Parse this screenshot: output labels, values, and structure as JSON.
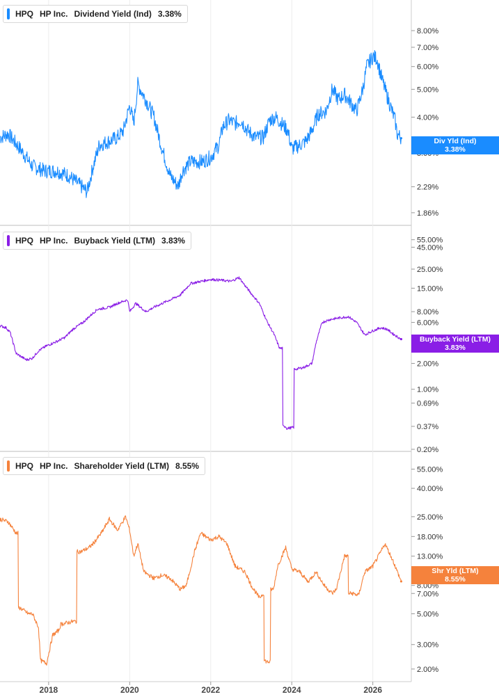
{
  "chart_data": [
    {
      "type": "line",
      "ticker": "HPQ",
      "company": "HP Inc.",
      "metric": "Dividend Yield (Ind)",
      "last_value": "3.38%",
      "tag_label": "Div Yld (Ind)",
      "color": "#1a8cff",
      "scale": "log",
      "ylim": [
        1.7,
        10.0
      ],
      "yticks": [
        "8.00%",
        "7.00%",
        "6.00%",
        "5.00%",
        "4.00%",
        "3.00%",
        "2.29%",
        "1.86%"
      ],
      "ytick_values": [
        8.0,
        7.0,
        6.0,
        5.0,
        4.0,
        3.0,
        2.29,
        1.86
      ],
      "x": [
        2016.8,
        2017.0,
        2017.3,
        2017.6,
        2017.9,
        2018.2,
        2018.5,
        2018.8,
        2018.95,
        2019.1,
        2019.25,
        2019.5,
        2019.7,
        2019.85,
        2020.0,
        2020.1,
        2020.2,
        2020.4,
        2020.6,
        2020.8,
        2021.0,
        2021.2,
        2021.3,
        2021.5,
        2021.8,
        2022.0,
        2022.2,
        2022.3,
        2022.45,
        2022.6,
        2022.75,
        2022.9,
        2023.1,
        2023.3,
        2023.45,
        2023.6,
        2023.75,
        2023.9,
        2024.0,
        2024.2,
        2024.35,
        2024.5,
        2024.65,
        2024.85,
        2025.0,
        2025.15,
        2025.3,
        2025.45,
        2025.6,
        2025.75,
        2025.85,
        2026.0,
        2026.1,
        2026.2,
        2026.3,
        2026.45,
        2026.55,
        2026.6,
        2026.7
      ],
      "y": [
        3.4,
        3.5,
        3.1,
        2.7,
        2.6,
        2.6,
        2.5,
        2.3,
        2.2,
        2.7,
        3.2,
        3.3,
        3.4,
        3.6,
        4.4,
        3.8,
        5.2,
        4.6,
        4.0,
        3.1,
        2.5,
        2.3,
        2.6,
        2.8,
        2.8,
        2.9,
        3.2,
        3.7,
        3.9,
        3.8,
        3.9,
        3.6,
        3.4,
        3.4,
        3.9,
        4.0,
        3.8,
        3.6,
        3.1,
        3.2,
        3.3,
        3.6,
        4.1,
        4.2,
        5.0,
        4.6,
        4.8,
        4.5,
        4.2,
        5.0,
        6.0,
        6.5,
        6.4,
        5.6,
        5.0,
        4.3,
        3.9,
        3.5,
        3.38
      ]
    },
    {
      "type": "line",
      "ticker": "HPQ",
      "company": "HP Inc.",
      "metric": "Buyback Yield (LTM)",
      "last_value": "3.83%",
      "tag_label": "Buyback Yield (LTM)",
      "color": "#8a1ee6",
      "scale": "log",
      "ylim": [
        0.2,
        60.0
      ],
      "yticks": [
        "55.00%",
        "45.00%",
        "25.00%",
        "15.00%",
        "8.00%",
        "6.00%",
        "3.00%",
        "2.00%",
        "1.00%",
        "0.69%",
        "0.37%",
        "0.20%"
      ],
      "ytick_values": [
        55,
        45,
        25,
        15,
        8,
        6,
        3,
        2,
        1,
        0.69,
        0.37,
        0.2
      ],
      "x": [
        2016.8,
        2016.95,
        2017.05,
        2017.2,
        2017.45,
        2017.6,
        2017.75,
        2017.95,
        2018.2,
        2018.4,
        2018.6,
        2018.85,
        2019.0,
        2019.2,
        2019.5,
        2019.7,
        2019.95,
        2020.0,
        2020.15,
        2020.4,
        2020.6,
        2020.9,
        2021.0,
        2021.25,
        2021.5,
        2021.75,
        2022.0,
        2022.3,
        2022.5,
        2022.7,
        2022.85,
        2023.0,
        2023.2,
        2023.4,
        2023.55,
        2023.7,
        2023.85,
        2023.87,
        2024.05,
        2024.07,
        2024.3,
        2024.5,
        2024.6,
        2024.75,
        2024.95,
        2025.2,
        2025.4,
        2025.6,
        2025.8,
        2026.0,
        2026.2,
        2026.35,
        2026.5,
        2026.7
      ],
      "y": [
        5.5,
        5.2,
        4.6,
        2.6,
        2.2,
        2.3,
        2.8,
        3.2,
        3.6,
        4.0,
        5.0,
        6.0,
        7.0,
        8.5,
        9.0,
        10.0,
        11.0,
        8.0,
        10.0,
        8.0,
        9.0,
        10.5,
        11.0,
        12.5,
        17.0,
        18.0,
        19.0,
        18.5,
        18.0,
        20.0,
        16.0,
        13.0,
        10.0,
        6.0,
        4.5,
        3.0,
        0.37,
        0.35,
        0.36,
        1.7,
        1.8,
        2.0,
        3.5,
        6.0,
        6.5,
        6.8,
        7.0,
        6.0,
        4.3,
        4.8,
        5.2,
        5.0,
        4.4,
        3.83
      ]
    },
    {
      "type": "line",
      "ticker": "HPQ",
      "company": "HP Inc.",
      "metric": "Shareholder Yield (LTM)",
      "last_value": "8.55%",
      "tag_label": "Shr Yld (LTM)",
      "color": "#f5823c",
      "scale": "log",
      "ylim": [
        1.7,
        65.0
      ],
      "yticks": [
        "55.00%",
        "40.00%",
        "25.00%",
        "18.00%",
        "13.00%",
        "8.00%",
        "7.00%",
        "5.00%",
        "3.00%",
        "2.00%"
      ],
      "ytick_values": [
        55,
        40,
        25,
        18,
        13,
        8,
        7,
        5,
        3,
        2
      ],
      "x": [
        2016.8,
        2017.0,
        2017.2,
        2017.3,
        2017.5,
        2017.6,
        2017.75,
        2017.8,
        2017.95,
        2018.1,
        2018.25,
        2018.3,
        2018.6,
        2018.8,
        2019.0,
        2019.1,
        2019.3,
        2019.5,
        2019.7,
        2019.9,
        2020.0,
        2020.1,
        2020.2,
        2020.35,
        2020.6,
        2020.8,
        2021.0,
        2021.25,
        2021.4,
        2021.6,
        2021.75,
        2022.0,
        2022.2,
        2022.4,
        2022.6,
        2022.85,
        2023.0,
        2023.2,
        2023.3,
        2023.33,
        2023.4,
        2023.55,
        2023.65,
        2023.85,
        2024.0,
        2024.2,
        2024.4,
        2024.6,
        2024.8,
        2025.0,
        2025.1,
        2025.3,
        2025.5,
        2025.65,
        2025.8,
        2026.0,
        2026.2,
        2026.3,
        2026.5,
        2026.7
      ],
      "y": [
        24.0,
        23.0,
        19.0,
        5.5,
        5.0,
        5.0,
        4.0,
        2.3,
        2.2,
        3.5,
        3.8,
        4.2,
        4.4,
        14.0,
        15.0,
        16.0,
        19.0,
        24.0,
        20.0,
        25.0,
        20.0,
        13.0,
        16.0,
        10.0,
        9.0,
        9.5,
        9.0,
        7.5,
        8.0,
        14.0,
        19.0,
        17.0,
        18.0,
        16.0,
        11.0,
        10.0,
        8.0,
        6.5,
        7.0,
        2.3,
        2.25,
        7.5,
        11.0,
        15.0,
        10.5,
        10.0,
        8.5,
        10.0,
        8.0,
        7.0,
        7.5,
        13.0,
        7.0,
        6.8,
        10.0,
        11.0,
        14.0,
        16.0,
        12.0,
        8.55
      ]
    }
  ],
  "xaxis": {
    "ticks": [
      "2018",
      "2020",
      "2022",
      "2024",
      "2026"
    ],
    "tick_values": [
      2018,
      2020,
      2022,
      2024,
      2026
    ],
    "xlim": [
      2016.8,
      2026.95
    ]
  },
  "grid": "vertical",
  "legend_placement": "top-left"
}
